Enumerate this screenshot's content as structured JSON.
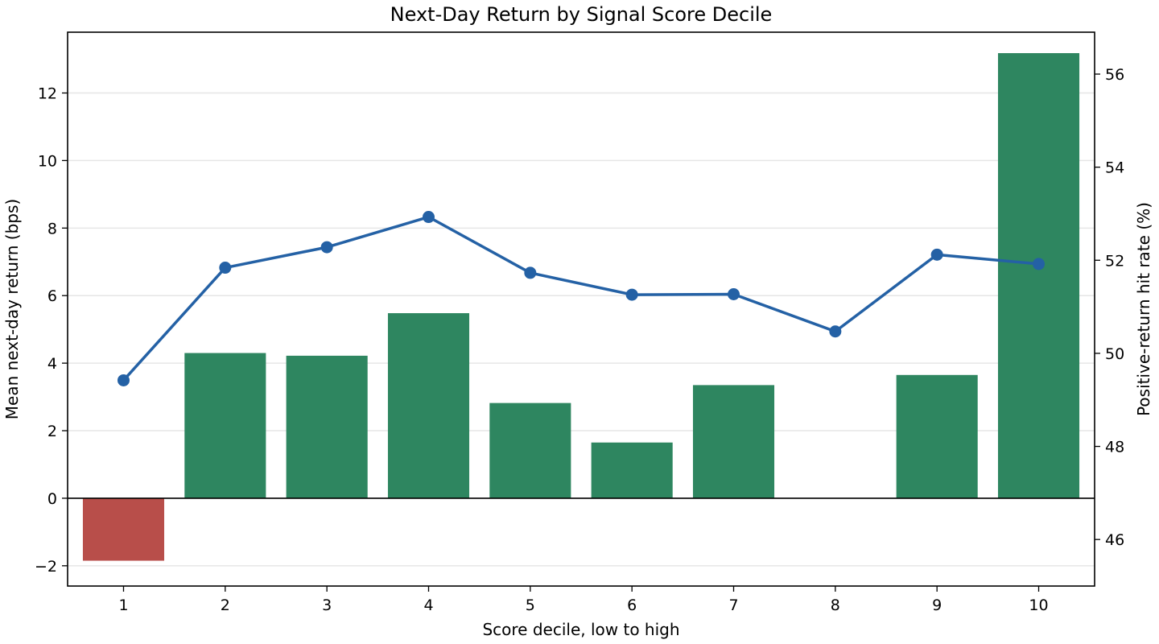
{
  "chart_data": {
    "type": "bar",
    "title": "Next-Day Return by Signal Score Decile",
    "xlabel": "Score decile, low to high",
    "ylabel": "Mean next-day return (bps)",
    "y2label": "Positive-return hit rate (%)",
    "categories": [
      "1",
      "2",
      "3",
      "4",
      "5",
      "6",
      "7",
      "8",
      "9",
      "10"
    ],
    "ylim": [
      -2.6,
      13.8
    ],
    "yticks": [
      -2,
      0,
      2,
      4,
      6,
      8,
      10,
      12
    ],
    "ytick_labels": [
      "−2",
      "0",
      "2",
      "4",
      "6",
      "8",
      "10",
      "12"
    ],
    "y2lim": [
      45.0,
      56.9
    ],
    "y2ticks": [
      46,
      48,
      50,
      52,
      54,
      56
    ],
    "y2tick_labels": [
      "46",
      "48",
      "50",
      "52",
      "54",
      "56"
    ],
    "grid": "horizontal",
    "series": [
      {
        "axis": "left",
        "kind": "bar",
        "values": [
          -1.85,
          4.3,
          4.22,
          5.48,
          2.82,
          1.65,
          3.35,
          0.0,
          3.65,
          13.18
        ]
      },
      {
        "axis": "right",
        "kind": "line",
        "values": [
          49.42,
          51.84,
          52.28,
          52.93,
          51.73,
          51.26,
          51.27,
          50.47,
          52.12,
          51.92
        ]
      }
    ],
    "colors": {
      "positive_bar": "#2e8660",
      "negative_bar": "#b84e4a",
      "line": "#2461a5",
      "grid": "#e6e6e6",
      "zero_line": "#000000"
    }
  }
}
